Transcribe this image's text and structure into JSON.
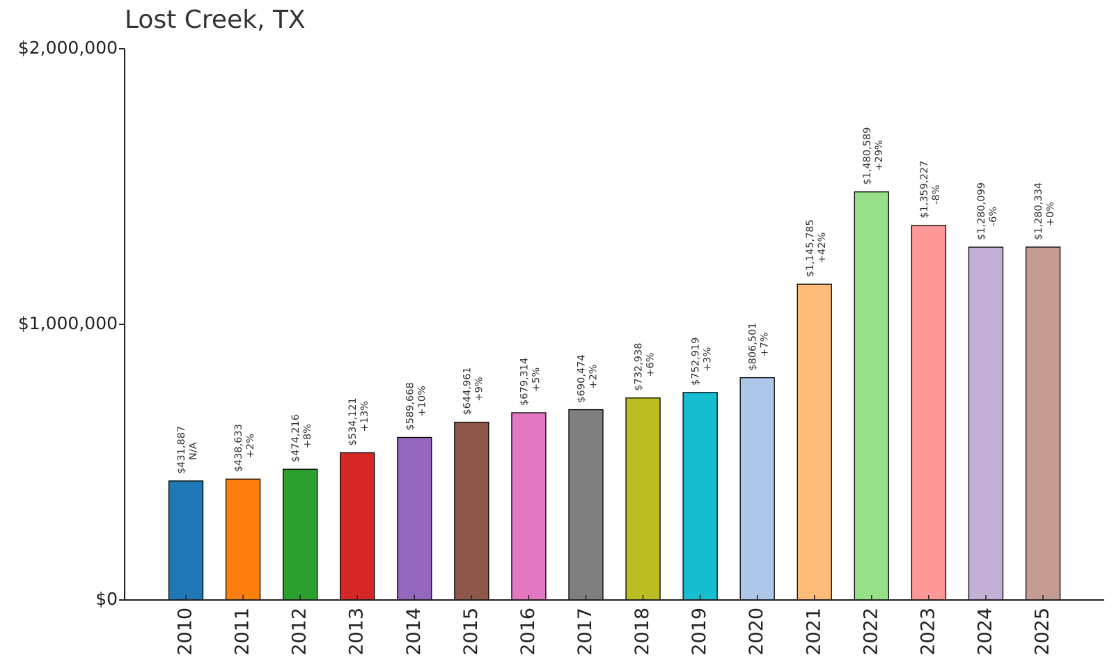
{
  "chart_data": {
    "type": "bar",
    "title": "Lost Creek, TX",
    "xlabel": "",
    "ylabel": "",
    "ylim": [
      0,
      2000000
    ],
    "y_ticks": [
      {
        "value": 0,
        "label": "$0"
      },
      {
        "value": 1000000,
        "label": "$1,000,000"
      },
      {
        "value": 2000000,
        "label": "$2,000,000"
      }
    ],
    "grid": false,
    "legend": "none",
    "categories": [
      "2010",
      "2011",
      "2012",
      "2013",
      "2014",
      "2015",
      "2016",
      "2017",
      "2018",
      "2019",
      "2020",
      "2021",
      "2022",
      "2023",
      "2024",
      "2025"
    ],
    "values": [
      431887,
      438633,
      474216,
      534121,
      589668,
      644961,
      679314,
      690474,
      732938,
      752919,
      806501,
      1145785,
      1480589,
      1359227,
      1280099,
      1280334
    ],
    "value_labels": [
      "$431,887",
      "$438,633",
      "$474,216",
      "$534,121",
      "$589,668",
      "$644,961",
      "$679,314",
      "$690,474",
      "$732,938",
      "$752,919",
      "$806,501",
      "$1,145,785",
      "$1,480,589",
      "$1,359,227",
      "$1,280,099",
      "$1,280,334"
    ],
    "change_labels": [
      "N/A",
      "+2%",
      "+8%",
      "+13%",
      "+10%",
      "+9%",
      "+5%",
      "+2%",
      "+6%",
      "+3%",
      "+7%",
      "+42%",
      "+29%",
      "-8%",
      "-6%",
      "+0%"
    ],
    "colors": [
      "#1f77b4",
      "#ff7f0e",
      "#2ca02c",
      "#d62728",
      "#9467bd",
      "#8c564b",
      "#e377c2",
      "#7f7f7f",
      "#bcbd22",
      "#17becf",
      "#aec7e8",
      "#ffbb78",
      "#98df8a",
      "#ff9896",
      "#c5b0d5",
      "#c49c94"
    ]
  }
}
